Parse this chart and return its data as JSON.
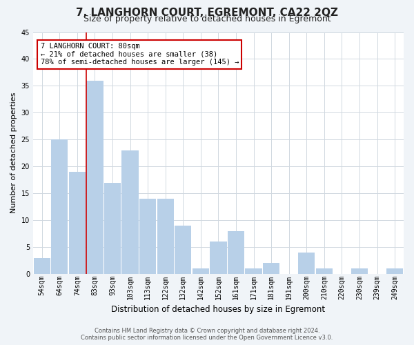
{
  "title": "7, LANGHORN COURT, EGREMONT, CA22 2QZ",
  "subtitle": "Size of property relative to detached houses in Egremont",
  "xlabel": "Distribution of detached houses by size in Egremont",
  "ylabel": "Number of detached properties",
  "bar_labels": [
    "54sqm",
    "64sqm",
    "74sqm",
    "83sqm",
    "93sqm",
    "103sqm",
    "113sqm",
    "122sqm",
    "132sqm",
    "142sqm",
    "152sqm",
    "161sqm",
    "171sqm",
    "181sqm",
    "191sqm",
    "200sqm",
    "210sqm",
    "220sqm",
    "230sqm",
    "239sqm",
    "249sqm"
  ],
  "bar_values": [
    3,
    25,
    19,
    36,
    17,
    23,
    14,
    14,
    9,
    1,
    6,
    8,
    1,
    2,
    0,
    4,
    1,
    0,
    1,
    0,
    1
  ],
  "bar_color": "#b8d0e8",
  "subject_line_index": 3,
  "annotation_title": "7 LANGHORN COURT: 80sqm",
  "annotation_line1": "← 21% of detached houses are smaller (38)",
  "annotation_line2": "78% of semi-detached houses are larger (145) →",
  "annotation_box_color": "#ffffff",
  "annotation_box_edge": "#cc0000",
  "subject_line_color": "#cc0000",
  "ylim": [
    0,
    45
  ],
  "yticks": [
    0,
    5,
    10,
    15,
    20,
    25,
    30,
    35,
    40,
    45
  ],
  "footer_line1": "Contains HM Land Registry data © Crown copyright and database right 2024.",
  "footer_line2": "Contains public sector information licensed under the Open Government Licence v3.0.",
  "bg_color": "#f0f4f8",
  "plot_bg_color": "#ffffff",
  "grid_color": "#d0d8e0",
  "title_fontsize": 11,
  "subtitle_fontsize": 9,
  "xlabel_fontsize": 8.5,
  "ylabel_fontsize": 8,
  "tick_fontsize": 7,
  "annotation_fontsize": 7.5,
  "footer_fontsize": 6
}
